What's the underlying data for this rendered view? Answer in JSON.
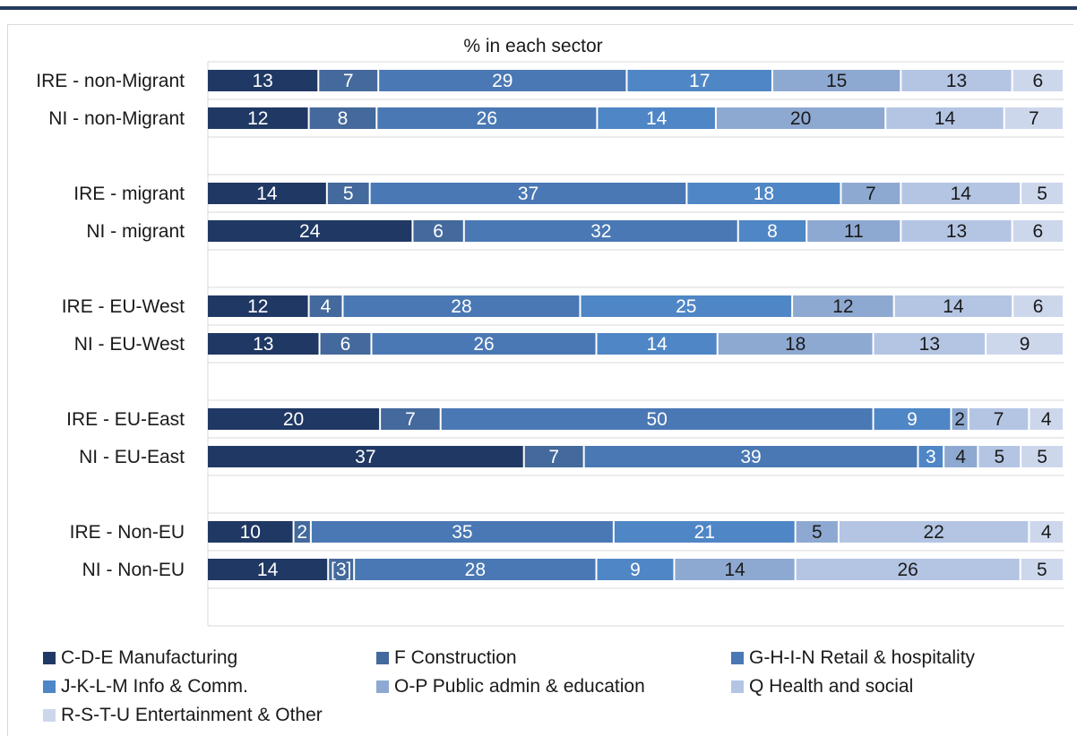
{
  "chart_data": {
    "type": "bar",
    "orientation": "horizontal",
    "stacked": true,
    "title": "% in each sector",
    "categories": [
      "IRE - non-Migrant",
      "NI - non-Migrant",
      "IRE - migrant",
      "NI - migrant",
      "IRE - EU-West",
      "NI - EU-West",
      "IRE - EU-East",
      "NI - EU-East",
      "IRE - Non-EU",
      "NI - Non-EU"
    ],
    "series": [
      {
        "name": "C-D-E Manufacturing",
        "color": "#203864",
        "text_color": "#ffffff",
        "values": [
          13,
          12,
          14,
          24,
          12,
          13,
          20,
          37,
          10,
          14
        ],
        "labels": [
          "13",
          "12",
          "14",
          "24",
          "12",
          "13",
          "20",
          "37",
          "10",
          "14"
        ]
      },
      {
        "name": "F Construction",
        "color": "#44699c",
        "text_color": "#ffffff",
        "values": [
          7,
          8,
          5,
          6,
          4,
          6,
          7,
          7,
          2,
          3
        ],
        "labels": [
          "7",
          "8",
          "5",
          "6",
          "4",
          "6",
          "7",
          "7",
          "2",
          "[3]"
        ]
      },
      {
        "name": "G-H-I-N Retail & hospitality",
        "color": "#4a78b4",
        "text_color": "#ffffff",
        "values": [
          29,
          26,
          37,
          32,
          28,
          26,
          50,
          39,
          35,
          28
        ],
        "labels": [
          "29",
          "26",
          "37",
          "32",
          "28",
          "26",
          "50",
          "39",
          "35",
          "28"
        ]
      },
      {
        "name": "J-K-L-M Info & Comm.",
        "color": "#4f86c6",
        "text_color": "#ffffff",
        "values": [
          17,
          14,
          18,
          8,
          25,
          14,
          9,
          3,
          21,
          9
        ],
        "labels": [
          "17",
          "14",
          "18",
          "8",
          "25",
          "14",
          "9",
          "3",
          "21",
          "9"
        ]
      },
      {
        "name": "O-P Public admin & education",
        "color": "#8ea9d1",
        "text_color": "#1a1a1a",
        "values": [
          15,
          20,
          7,
          11,
          12,
          18,
          2,
          4,
          5,
          14
        ],
        "labels": [
          "15",
          "20",
          "7",
          "11",
          "12",
          "18",
          "2",
          "4",
          "5",
          "14"
        ]
      },
      {
        "name": "Q Health and social",
        "color": "#b4c5e4",
        "text_color": "#1a1a1a",
        "values": [
          13,
          14,
          14,
          13,
          14,
          13,
          7,
          5,
          22,
          26
        ],
        "labels": [
          "13",
          "14",
          "14",
          "13",
          "14",
          "13",
          "7",
          "5",
          "22",
          "26"
        ]
      },
      {
        "name": "R-S-T-U Entertainment & Other",
        "color": "#cdd7ec",
        "text_color": "#1a1a1a",
        "values": [
          6,
          7,
          5,
          6,
          6,
          9,
          4,
          5,
          4,
          5
        ],
        "labels": [
          "6",
          "7",
          "5",
          "6",
          "6",
          "9",
          "4",
          "5",
          "4",
          "5"
        ]
      }
    ],
    "xlim": [
      0,
      100
    ],
    "grid": true,
    "legend_position": "bottom"
  }
}
